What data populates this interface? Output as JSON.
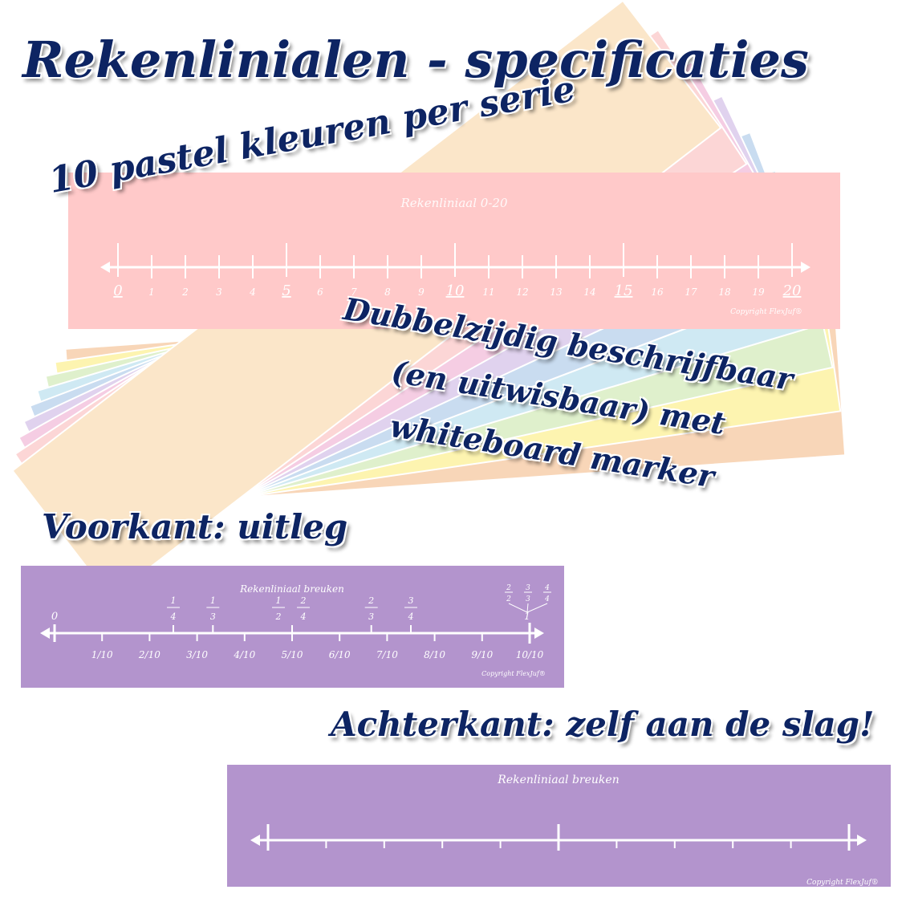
{
  "title": "Rekenlinialen - specificaties",
  "callouts": {
    "colors": "10 pastel kleuren per serie",
    "double_sided": [
      "Dubbelzijdig beschrijfbaar",
      "(en uitwisbaar) met",
      "whiteboard marker"
    ],
    "front": "Voorkant: uitleg",
    "back": "Achterkant: zelf aan de slag!"
  },
  "fan_colors": [
    "#f8d6b8",
    "#fdf4b0",
    "#dff0cc",
    "#cfe9f3",
    "#c9dcf0",
    "#e0d2ee",
    "#f5cde3",
    "#fcd6d6",
    "#fbe6c9"
  ],
  "ruler_0_20": {
    "title": "Rekenliniaal 0-20",
    "copyright": "Copyright FlexJuf®",
    "color": "#ffc9c9",
    "labels": [
      "0",
      "1",
      "2",
      "3",
      "4",
      "5",
      "6",
      "7",
      "8",
      "9",
      "10",
      "11",
      "12",
      "13",
      "14",
      "15",
      "16",
      "17",
      "18",
      "19",
      "20"
    ],
    "underlined": [
      "0",
      "5",
      "10",
      "15",
      "20"
    ]
  },
  "ruler_fractions_front": {
    "title": "Rekenliniaal breuken",
    "copyright": "Copyright FlexJuf®",
    "color": "#b394cd",
    "start_label": "0",
    "end_label": "1",
    "bottom_fractions": [
      "1/10",
      "2/10",
      "3/10",
      "4/10",
      "5/10",
      "6/10",
      "7/10",
      "8/10",
      "9/10",
      "10/10"
    ],
    "top_fractions": [
      {
        "num": "1",
        "den": "4",
        "value": 0.25
      },
      {
        "num": "1",
        "den": "3",
        "value": 0.3333
      },
      {
        "num": "1",
        "den": "2",
        "value": 0.5
      },
      {
        "num": "2",
        "den": "4",
        "value": 0.5
      },
      {
        "num": "2",
        "den": "3",
        "value": 0.6667
      },
      {
        "num": "3",
        "den": "4",
        "value": 0.75
      }
    ],
    "whole_fractions": [
      {
        "num": "2",
        "den": "2"
      },
      {
        "num": "3",
        "den": "3"
      },
      {
        "num": "4",
        "den": "4"
      }
    ]
  },
  "ruler_fractions_back": {
    "title": "Rekenliniaal breuken",
    "copyright": "Copyright FlexJuf®",
    "color": "#b394cd",
    "divisions": 10
  }
}
